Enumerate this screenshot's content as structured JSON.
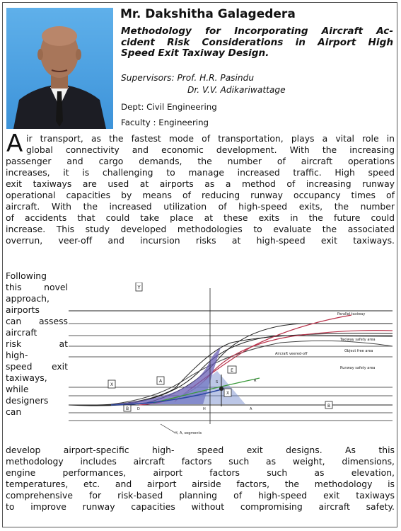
{
  "profile": {
    "name": "Mr. Dakshitha Galagedera",
    "title_lines": [
      "Methodology for Incorporating Aircraft Ac-",
      "cident Risk Considerations in Airport High",
      "Speed Exit Taxiway Design."
    ],
    "supervisors_label": "Supervisors: Prof. H.R. Pasindu",
    "supervisor_2": "Dr. V.V. Adikariwattage",
    "dept": "Dept: Civil Engineering",
    "faculty": "Faculty : Engineering"
  },
  "abstract": {
    "dropcap": "A",
    "top_lines": [
      "ir transport, as the fastest mode of transportation, plays a vital role in",
      "global connectivity and economic development. With the increasing",
      "passenger and cargo demands, the number of aircraft operations",
      "increases, it is challenging to manage increased traffic. High speed",
      "exit taxiways are used at airports as a method of increasing runway",
      "operational capacities by means of reducing runway occupancy times of",
      "aircraft. With the increased utilization of high-speed exits, the number",
      "of accidents that could take place at these exits in the future could",
      "increase. This study developed methodologies to evaluate the associated",
      "overrun, veer-off and incursion risks at high-speed exit taxiways."
    ],
    "column_lines": [
      "Following",
      "this novel",
      "approach,",
      "airports",
      "can assess",
      "aircraft",
      "risk at",
      "high-",
      "speed exit",
      "taxiways,",
      "while",
      "designers",
      "can"
    ],
    "bottom_lines": [
      "develop airport-specific high- speed exit designs. As this",
      "methodology includes aircraft factors such as weight, dimensions,",
      "engine performances, airport factors such as elevation,",
      "temperatures, etc. and airport airside factors, the methodology is",
      "comprehensive for risk-based planning of high-speed exit taxiways",
      "to improve runway capacities without compromising aircraft safety."
    ]
  },
  "figure": {
    "labels": {
      "parallel_taxiway": "Parallel taxiway",
      "taxiway_safety_area": "Taxiway safety area",
      "object_free_area": "Object free area",
      "runway_safety_area": "Runway safety area",
      "aircraft_veered_off": "Aircraft veered-off",
      "box_y": "Y",
      "box_x1": "X",
      "box_x2": "X",
      "box_a": "A",
      "box_e": "E",
      "box_b1": "B",
      "box_b2": "B",
      "tag_d1": "D",
      "tag_d2": "D",
      "tag_h": "H",
      "tag_a": "A",
      "tag_r": "R",
      "tag_s": "S",
      "bottom_note": "H, A, segments"
    },
    "colors": {
      "red": "#b8324a",
      "green": "#3a9a3a",
      "purple": "#5a4fa8",
      "blue": "#2a46a0"
    }
  }
}
